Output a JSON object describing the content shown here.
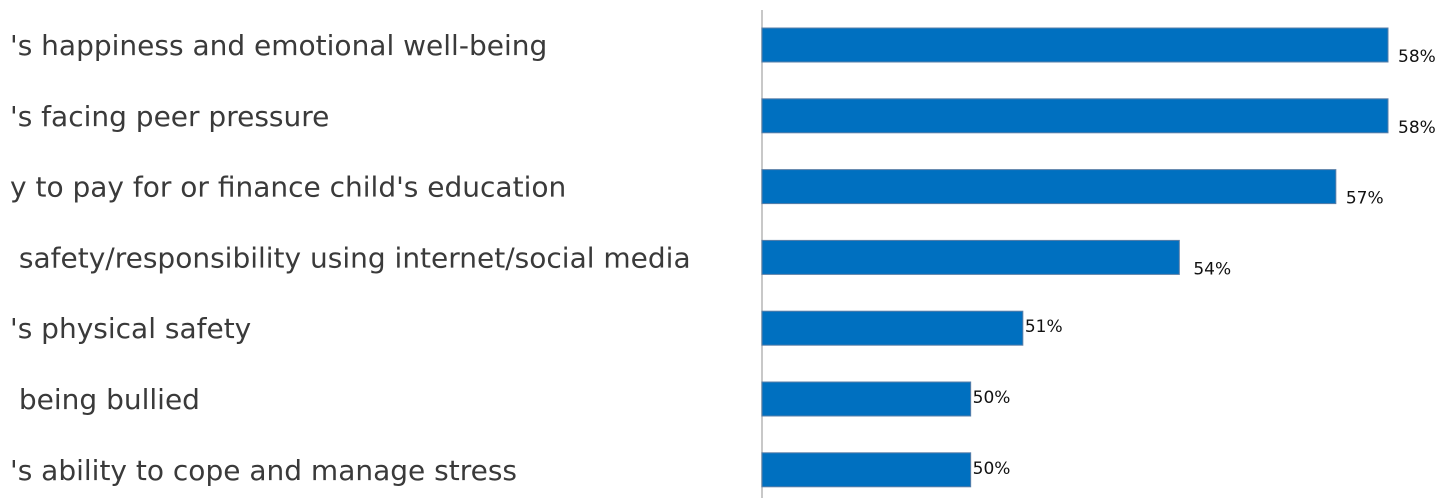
{
  "chart_data": {
    "type": "bar",
    "orientation": "horizontal",
    "categories": [
      "'s happiness and emotional well-being",
      "'s facing peer pressure",
      "y to pay for or finance child's education",
      " safety/responsibility using internet/social media",
      "'s physical safety",
      " being bullied",
      "'s ability to cope and manage stress"
    ],
    "values": [
      58,
      58,
      57,
      54,
      51,
      50,
      50
    ],
    "value_labels": [
      "58%",
      "58%",
      "57%",
      "54%",
      "51%",
      "50%",
      "50%"
    ],
    "bar_color": "#0070c0",
    "axis_color": "#c8c8c8",
    "grid": false,
    "legend": "none"
  }
}
